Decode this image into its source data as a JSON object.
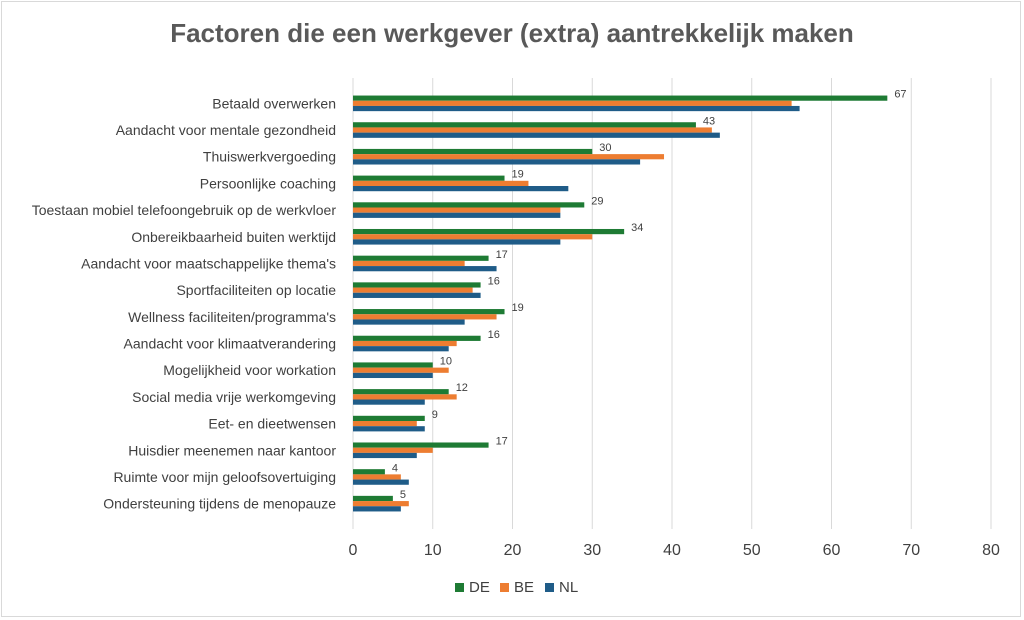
{
  "chart_data": {
    "type": "bar",
    "orientation": "horizontal",
    "title": "Factoren die een werkgever (extra) aantrekkelijk maken",
    "xlim": [
      0,
      80
    ],
    "x_ticks": [
      0,
      10,
      20,
      30,
      40,
      50,
      60,
      70,
      80
    ],
    "grid": "vertical",
    "legend_position": "bottom",
    "categories": [
      "Betaald overwerken",
      "Aandacht voor mentale gezondheid",
      "Thuiswerkvergoeding",
      "Persoonlijke coaching",
      "Toestaan mobiel telefoongebruik op de werkvloer",
      "Onbereikbaarheid buiten werktijd",
      "Aandacht voor maatschappelijke thema's",
      "Sportfaciliteiten op locatie",
      "Wellness faciliteiten/programma's",
      "Aandacht voor klimaatverandering",
      "Mogelijkheid voor workation",
      "Social media vrije werkomgeving",
      "Eet- en dieetwensen",
      "Huisdier meenemen naar kantoor",
      "Ruimte voor mijn geloofsovertuiging",
      "Ondersteuning tijdens de menopauze"
    ],
    "series": [
      {
        "name": "DE",
        "color": "#1e7b34",
        "values": [
          67,
          43,
          30,
          19,
          29,
          34,
          17,
          16,
          19,
          16,
          10,
          12,
          9,
          17,
          4,
          5
        ],
        "show_labels": true
      },
      {
        "name": "BE",
        "color": "#ed7d31",
        "values": [
          55,
          45,
          39,
          22,
          26,
          30,
          14,
          15,
          18,
          13,
          12,
          13,
          8,
          10,
          6,
          7
        ],
        "show_labels": false
      },
      {
        "name": "NL",
        "color": "#1f5c88",
        "values": [
          56,
          46,
          36,
          27,
          26,
          26,
          18,
          16,
          14,
          12,
          10,
          9,
          9,
          8,
          7,
          6
        ],
        "show_labels": false
      }
    ]
  }
}
